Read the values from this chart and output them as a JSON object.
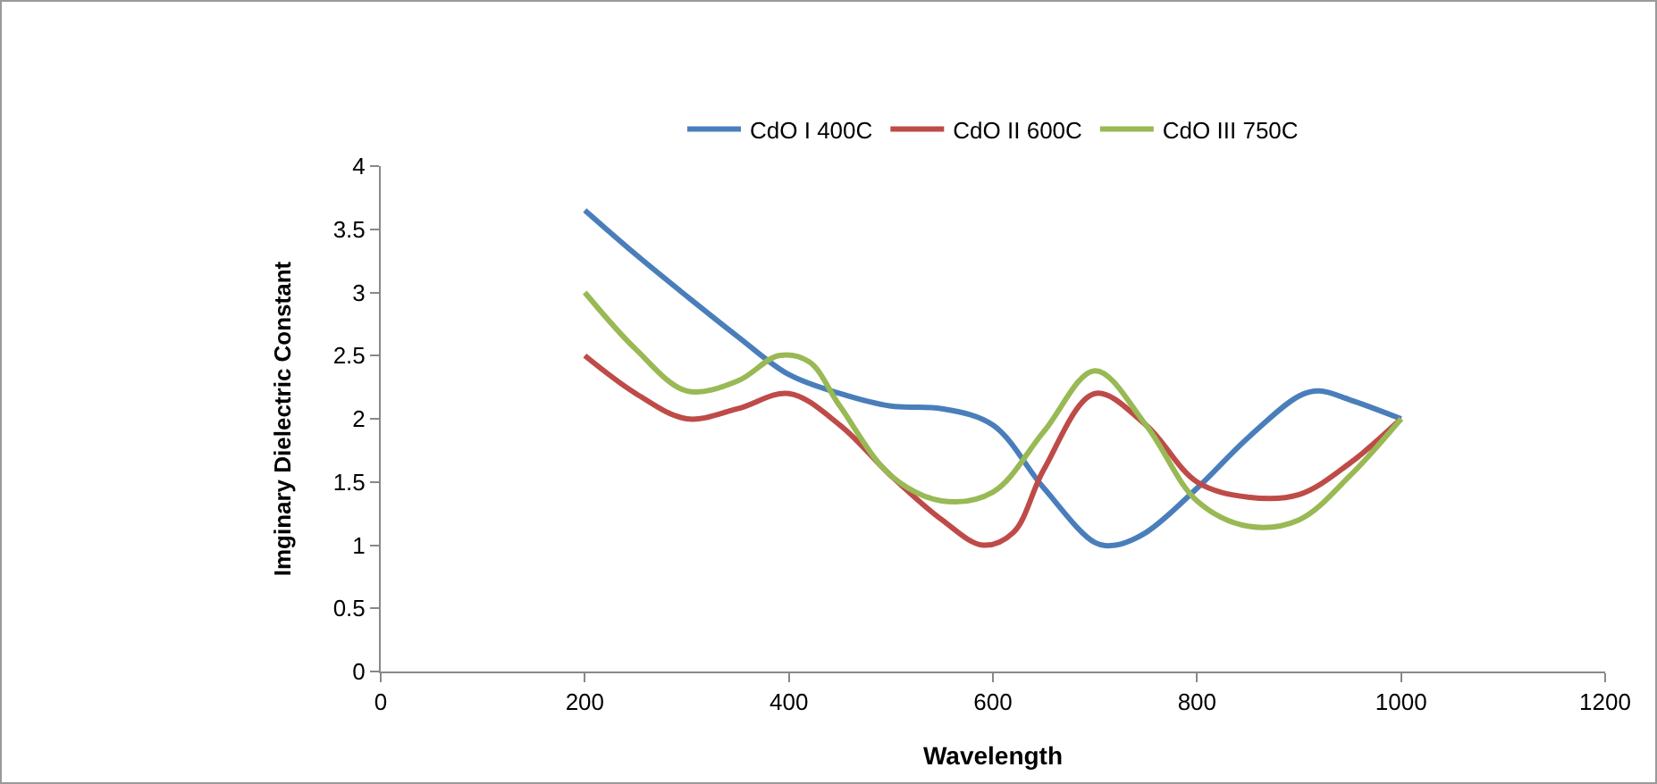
{
  "chart_data": {
    "type": "line",
    "xlabel": "Wavelength",
    "ylabel": "Imginary Dielectric Constant",
    "xlim": [
      0,
      1200
    ],
    "xticks": [
      0,
      200,
      400,
      600,
      800,
      1000,
      1200
    ],
    "ylim": [
      0,
      4
    ],
    "yticks": [
      0,
      0.5,
      1,
      1.5,
      2,
      2.5,
      3,
      3.5,
      4
    ],
    "grid": false,
    "legend": "top",
    "marker": "none",
    "line_style": "solid",
    "series": [
      {
        "name": "CdO I 400C",
        "color": "#4a7ebb",
        "x": [
          200,
          250,
          300,
          350,
          400,
          450,
          500,
          550,
          600,
          650,
          700,
          720,
          750,
          800,
          850,
          900,
          920,
          950,
          1000
        ],
        "values": [
          3.65,
          3.3,
          2.97,
          2.65,
          2.35,
          2.2,
          2.1,
          2.08,
          1.95,
          1.45,
          1.02,
          1.0,
          1.1,
          1.45,
          1.85,
          2.18,
          2.22,
          2.15,
          2.0
        ]
      },
      {
        "name": "CdO II 600C",
        "color": "#be4b48",
        "x": [
          200,
          250,
          300,
          350,
          400,
          450,
          500,
          550,
          590,
          620,
          650,
          700,
          750,
          800,
          850,
          900,
          950,
          1000
        ],
        "values": [
          2.5,
          2.2,
          2.0,
          2.08,
          2.2,
          1.95,
          1.55,
          1.2,
          1.0,
          1.1,
          1.6,
          2.2,
          1.95,
          1.5,
          1.38,
          1.4,
          1.65,
          2.0
        ]
      },
      {
        "name": "CdO III 750C",
        "color": "#98b954",
        "x": [
          200,
          250,
          300,
          350,
          390,
          420,
          450,
          500,
          550,
          600,
          650,
          700,
          750,
          800,
          850,
          900,
          950,
          1000
        ],
        "values": [
          3.0,
          2.55,
          2.22,
          2.3,
          2.5,
          2.45,
          2.1,
          1.55,
          1.35,
          1.42,
          1.9,
          2.38,
          1.95,
          1.35,
          1.15,
          1.2,
          1.55,
          2.0
        ]
      }
    ]
  }
}
